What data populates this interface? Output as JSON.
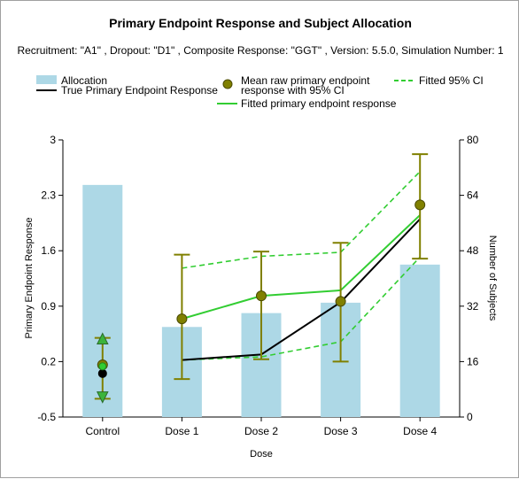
{
  "chart_data": {
    "type": "bar+line",
    "title": "Primary Endpoint Response and Subject Allocation",
    "subtitle": "Recruitment: \"A1\" , Dropout: \"D1\" , Composite Response: \"GGT\" , Version: 5.5.0, Simulation Number: 1",
    "xlabel": "Dose",
    "ylabel_left": "Primary Endpoint Response",
    "ylabel_right": "Number of Subjects",
    "categories": [
      "Control",
      "Dose 1",
      "Dose 2",
      "Dose 3",
      "Dose 4"
    ],
    "ylim_left": [
      -0.5,
      3
    ],
    "yticks_left": [
      "-0.5",
      "0.2",
      "0.9",
      "1.6",
      "2.3",
      "3"
    ],
    "ylim_right": [
      0,
      80
    ],
    "yticks_right": [
      "0",
      "16",
      "32",
      "48",
      "64",
      "80"
    ],
    "grid": false,
    "legend_placement": "top",
    "legend": {
      "allocation": "Allocation",
      "true_response": "True Primary Endpoint Response",
      "mean_raw_line1": "Mean raw primary endpoint",
      "mean_raw_line2": "response with 95% CI",
      "fitted_response": "Fitted primary endpoint response",
      "fitted_ci": "Fitted 95% CI"
    },
    "allocation": [
      67,
      26,
      30,
      33,
      44
    ],
    "true_response": [
      0.05,
      0.22,
      0.29,
      0.95,
      2.0
    ],
    "mean_raw": {
      "mean": [
        0.16,
        0.74,
        1.03,
        0.96,
        2.18
      ],
      "ci_low": [
        -0.27,
        -0.02,
        0.23,
        0.2,
        1.5
      ],
      "ci_high": [
        0.5,
        1.55,
        1.59,
        1.7,
        2.82
      ]
    },
    "fitted": [
      0.14,
      0.74,
      1.03,
      1.1,
      2.05
    ],
    "fitted_ci_low": [
      -0.25,
      0.22,
      0.26,
      0.45,
      1.52
    ],
    "fitted_ci_high": [
      0.49,
      1.38,
      1.53,
      1.58,
      2.6
    ],
    "colors": {
      "allocation_bar": "#add8e6",
      "true_response": "#000000",
      "mean_marker": "#808000",
      "ci_bar": "#808000",
      "fitted": "#32cd32",
      "fitted_ci": "#32cd32",
      "control_triangle": "#3cb43c"
    }
  }
}
